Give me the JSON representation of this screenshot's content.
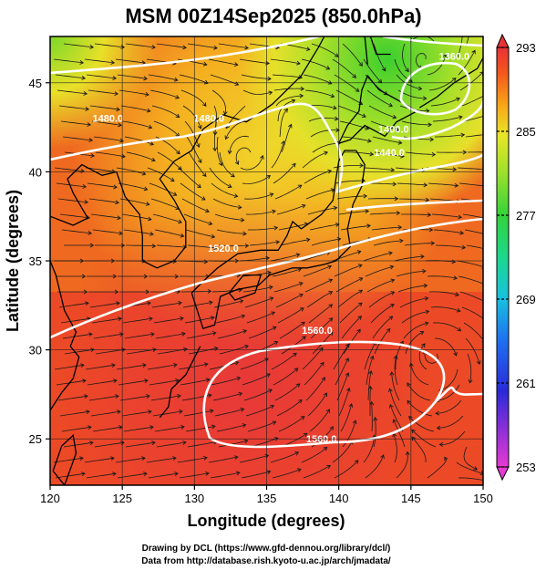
{
  "chart_data": {
    "type": "heatmap",
    "title": "MSM 00Z14Sep2025 (850.0hPa)",
    "xlabel": "Longitude (degrees)",
    "ylabel": "Latitude  (degrees)",
    "xlim": [
      120,
      150
    ],
    "ylim": [
      22.4,
      47.6
    ],
    "xticks": [
      "120",
      "125",
      "130",
      "135",
      "140",
      "145",
      "150"
    ],
    "xtick_values": [
      120,
      125,
      130,
      135,
      140,
      145,
      150
    ],
    "yticks": [
      "25",
      "30",
      "35",
      "40",
      "45"
    ],
    "ytick_values": [
      25,
      30,
      35,
      40,
      45
    ],
    "grid": true,
    "shaded_field": "temperature (K)",
    "colorbar": {
      "min": 253,
      "max": 293,
      "ticks": [
        "293",
        "285",
        "277",
        "269",
        "261",
        "253"
      ],
      "tick_values": [
        293,
        285,
        277,
        269,
        261,
        253
      ],
      "colors": [
        "#e63ad2",
        "#8c2fd8",
        "#2a2ad8",
        "#1f6ff0",
        "#18c0e0",
        "#1cd88e",
        "#34d23a",
        "#9ce02c",
        "#e8e628",
        "#f8a818",
        "#f4561c",
        "#e83238"
      ],
      "orientation": "vertical",
      "position": "right"
    },
    "contours": [
      {
        "label": "1560.0",
        "lon": 138.5,
        "lat": 30.9
      },
      {
        "label": "1560.0",
        "lon": 138.8,
        "lat": 24.8
      },
      {
        "label": "1520.0",
        "lon": 132.0,
        "lat": 35.5
      },
      {
        "label": "1480.0",
        "lon": 124.0,
        "lat": 42.8
      },
      {
        "label": "1480.0",
        "lon": 131.0,
        "lat": 42.8
      },
      {
        "label": "1440.0",
        "lon": 143.5,
        "lat": 40.9
      },
      {
        "label": "1400.0",
        "lon": 143.8,
        "lat": 42.2
      },
      {
        "label": "1360.0",
        "lon": 148.0,
        "lat": 46.3
      }
    ],
    "streamlines": "850hPa wind, west-to-east flow with anticyclone near 30N 147E and cyclones near 46N 146E and 40.5N 133E"
  },
  "credits": {
    "line1": "Drawing by DCL (https://www.gfd-dennou.org/library/dcl/)",
    "line2": "Data from http://database.rish.kyoto-u.ac.jp/arch/jmadata/"
  }
}
